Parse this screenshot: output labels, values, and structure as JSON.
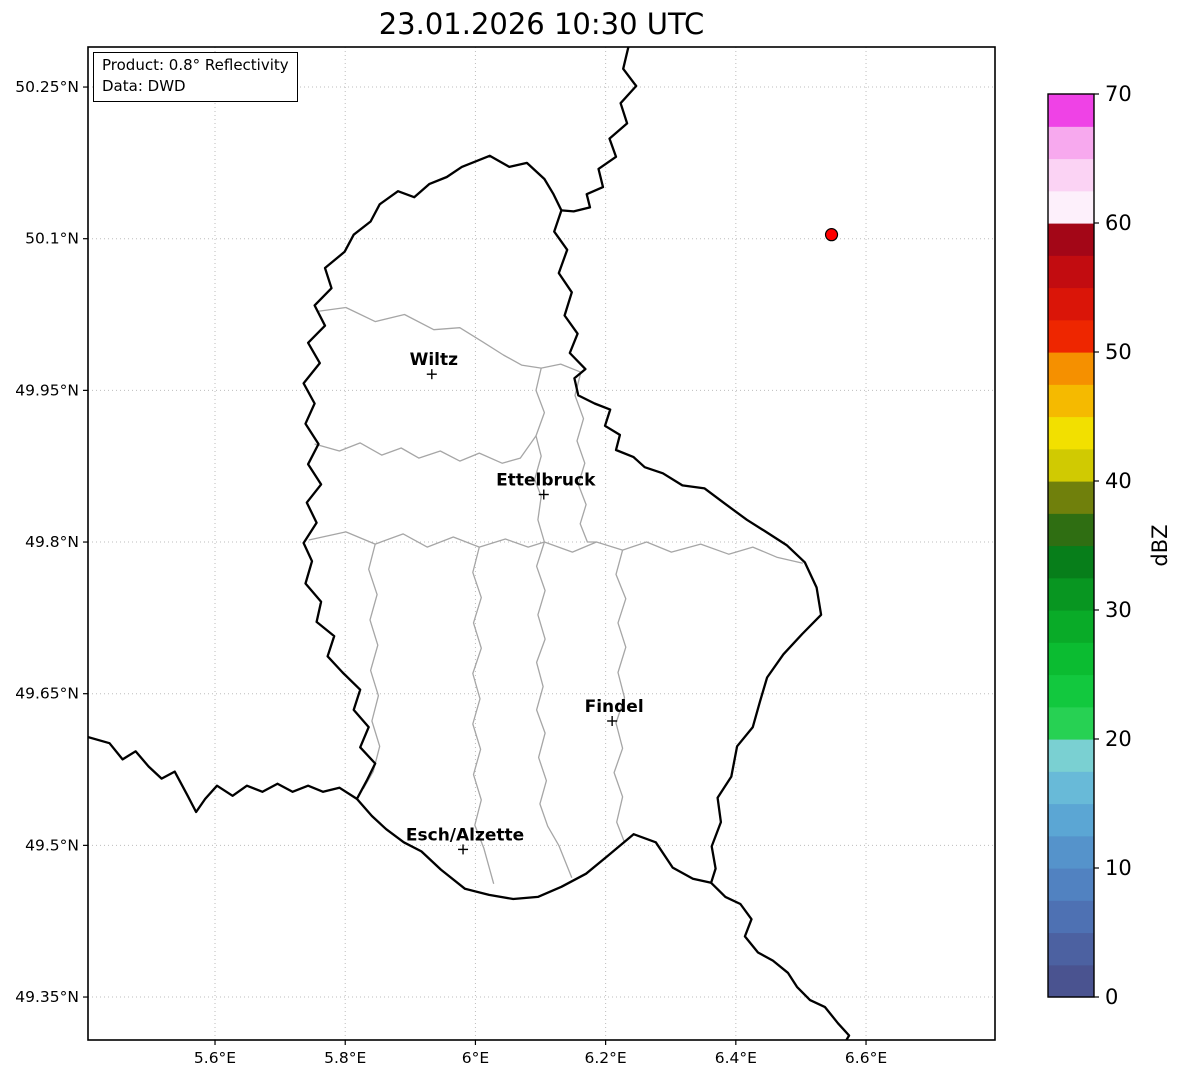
{
  "title": "23.01.2026 10:30 UTC",
  "info_box": {
    "line1": "Product: 0.8° Reflectivity",
    "line2": "Data: DWD"
  },
  "axes": {
    "x_ticks": [
      {
        "label": "5.6°E",
        "value": 5.6
      },
      {
        "label": "5.8°E",
        "value": 5.8
      },
      {
        "label": "6°E",
        "value": 6.0
      },
      {
        "label": "6.2°E",
        "value": 6.2
      },
      {
        "label": "6.4°E",
        "value": 6.4
      },
      {
        "label": "6.6°E",
        "value": 6.6
      }
    ],
    "y_ticks": [
      {
        "label": "50.25°N",
        "value": 50.25
      },
      {
        "label": "50.1°N",
        "value": 50.1
      },
      {
        "label": "49.95°N",
        "value": 49.95
      },
      {
        "label": "49.8°N",
        "value": 49.8
      },
      {
        "label": "49.65°N",
        "value": 49.65
      },
      {
        "label": "49.5°N",
        "value": 49.5
      },
      {
        "label": "49.35°N",
        "value": 49.35
      }
    ],
    "grid_color": "#bdbdbd"
  },
  "map": {
    "extent": {
      "lon_min": 5.4049,
      "lon_max": 6.7981,
      "lat_min": 49.3075,
      "lat_max": 50.2896
    },
    "country_border_color": "#000000",
    "district_border_color": "#a6a6a6",
    "cities": [
      {
        "name": "Wiltz",
        "lon": 5.933,
        "lat": 49.966
      },
      {
        "name": "Ettelbruck",
        "lon": 6.105,
        "lat": 49.847
      },
      {
        "name": "Findel",
        "lon": 6.21,
        "lat": 49.623
      },
      {
        "name": "Esch/Alzette",
        "lon": 5.981,
        "lat": 49.496
      }
    ],
    "radar_point": {
      "lon": 6.547,
      "lat": 50.104,
      "fill": "#ff0000",
      "edge": "#000000"
    },
    "borders": {
      "luxembourg": [
        [
          6.022,
          50.182
        ],
        [
          6.052,
          50.171
        ],
        [
          6.079,
          50.175
        ],
        [
          6.106,
          50.159
        ],
        [
          6.12,
          50.144
        ],
        [
          6.132,
          50.128
        ],
        [
          6.121,
          50.107
        ],
        [
          6.141,
          50.089
        ],
        [
          6.128,
          50.066
        ],
        [
          6.148,
          50.047
        ],
        [
          6.137,
          50.024
        ],
        [
          6.157,
          50.006
        ],
        [
          6.145,
          49.987
        ],
        [
          6.169,
          49.971
        ],
        [
          6.152,
          49.962
        ],
        [
          6.158,
          49.945
        ],
        [
          6.183,
          49.937
        ],
        [
          6.207,
          49.931
        ],
        [
          6.199,
          49.915
        ],
        [
          6.222,
          49.906
        ],
        [
          6.216,
          49.891
        ],
        [
          6.243,
          49.884
        ],
        [
          6.26,
          49.874
        ],
        [
          6.288,
          49.868
        ],
        [
          6.318,
          49.856
        ],
        [
          6.352,
          49.853
        ],
        [
          6.383,
          49.838
        ],
        [
          6.417,
          49.822
        ],
        [
          6.444,
          49.811
        ],
        [
          6.478,
          49.797
        ],
        [
          6.506,
          49.78
        ],
        [
          6.524,
          49.755
        ],
        [
          6.531,
          49.728
        ],
        [
          6.502,
          49.709
        ],
        [
          6.473,
          49.689
        ],
        [
          6.448,
          49.666
        ],
        [
          6.437,
          49.642
        ],
        [
          6.426,
          49.617
        ],
        [
          6.402,
          49.598
        ],
        [
          6.393,
          49.568
        ],
        [
          6.372,
          49.547
        ],
        [
          6.377,
          49.523
        ],
        [
          6.363,
          49.499
        ],
        [
          6.369,
          49.477
        ],
        [
          6.362,
          49.463
        ],
        [
          6.334,
          49.467
        ],
        [
          6.303,
          49.478
        ],
        [
          6.277,
          49.503
        ],
        [
          6.243,
          49.511
        ],
        [
          6.204,
          49.49
        ],
        [
          6.17,
          49.472
        ],
        [
          6.132,
          49.459
        ],
        [
          6.096,
          49.449
        ],
        [
          6.058,
          49.447
        ],
        [
          6.021,
          49.451
        ],
        [
          5.984,
          49.457
        ],
        [
          5.947,
          49.476
        ],
        [
          5.917,
          49.494
        ],
        [
          5.89,
          49.503
        ],
        [
          5.863,
          49.516
        ],
        [
          5.841,
          49.529
        ],
        [
          5.818,
          49.546
        ],
        [
          5.833,
          49.564
        ],
        [
          5.846,
          49.581
        ],
        [
          5.823,
          49.597
        ],
        [
          5.836,
          49.617
        ],
        [
          5.813,
          49.634
        ],
        [
          5.823,
          49.654
        ],
        [
          5.796,
          49.671
        ],
        [
          5.773,
          49.687
        ],
        [
          5.783,
          49.707
        ],
        [
          5.756,
          49.721
        ],
        [
          5.763,
          49.741
        ],
        [
          5.739,
          49.759
        ],
        [
          5.749,
          49.781
        ],
        [
          5.736,
          49.799
        ],
        [
          5.756,
          49.819
        ],
        [
          5.741,
          49.839
        ],
        [
          5.763,
          49.857
        ],
        [
          5.743,
          49.877
        ],
        [
          5.759,
          49.897
        ],
        [
          5.739,
          49.917
        ],
        [
          5.753,
          49.937
        ],
        [
          5.736,
          49.957
        ],
        [
          5.761,
          49.977
        ],
        [
          5.743,
          49.997
        ],
        [
          5.769,
          50.014
        ],
        [
          5.753,
          50.034
        ],
        [
          5.779,
          50.051
        ],
        [
          5.769,
          50.071
        ],
        [
          5.799,
          50.087
        ],
        [
          5.813,
          50.104
        ],
        [
          5.839,
          50.117
        ],
        [
          5.853,
          50.134
        ],
        [
          5.881,
          50.147
        ],
        [
          5.906,
          50.141
        ],
        [
          5.929,
          50.154
        ],
        [
          5.956,
          50.161
        ],
        [
          5.979,
          50.171
        ]
      ],
      "belgium_germany": [
        [
          6.237,
          50.295
        ],
        [
          6.227,
          50.268
        ],
        [
          6.247,
          50.251
        ],
        [
          6.223,
          50.234
        ],
        [
          6.233,
          50.214
        ],
        [
          6.206,
          50.199
        ],
        [
          6.216,
          50.181
        ],
        [
          6.189,
          50.169
        ],
        [
          6.196,
          50.151
        ],
        [
          6.171,
          50.144
        ],
        [
          6.176,
          50.131
        ],
        [
          6.151,
          50.127
        ],
        [
          6.132,
          50.128
        ]
      ],
      "france_belgium": [
        [
          5.4,
          49.608
        ],
        [
          5.438,
          49.601
        ],
        [
          5.458,
          49.585
        ],
        [
          5.478,
          49.593
        ],
        [
          5.498,
          49.578
        ],
        [
          5.518,
          49.566
        ],
        [
          5.538,
          49.573
        ],
        [
          5.558,
          49.549
        ],
        [
          5.571,
          49.533
        ],
        [
          5.585,
          49.546
        ],
        [
          5.603,
          49.559
        ],
        [
          5.627,
          49.549
        ],
        [
          5.649,
          49.559
        ],
        [
          5.673,
          49.553
        ],
        [
          5.696,
          49.561
        ],
        [
          5.719,
          49.553
        ],
        [
          5.743,
          49.559
        ],
        [
          5.766,
          49.553
        ],
        [
          5.791,
          49.557
        ],
        [
          5.818,
          49.546
        ]
      ],
      "france_germany": [
        [
          6.362,
          49.463
        ],
        [
          6.384,
          49.449
        ],
        [
          6.407,
          49.442
        ],
        [
          6.424,
          49.427
        ],
        [
          6.414,
          49.41
        ],
        [
          6.434,
          49.394
        ],
        [
          6.457,
          49.386
        ],
        [
          6.48,
          49.374
        ],
        [
          6.494,
          49.36
        ],
        [
          6.514,
          49.347
        ],
        [
          6.537,
          49.34
        ],
        [
          6.557,
          49.324
        ],
        [
          6.574,
          49.312
        ],
        [
          6.562,
          49.299
        ],
        [
          6.582,
          49.289
        ],
        [
          6.604,
          49.296
        ],
        [
          6.598,
          49.278
        ]
      ]
    },
    "districts": [
      [
        [
          5.756,
          50.028
        ],
        [
          5.801,
          50.032
        ],
        [
          5.846,
          50.018
        ],
        [
          5.891,
          50.025
        ],
        [
          5.936,
          50.01
        ],
        [
          5.976,
          50.012
        ],
        [
          6.011,
          49.998
        ],
        [
          6.043,
          49.985
        ],
        [
          6.071,
          49.975
        ],
        [
          6.101,
          49.972
        ],
        [
          6.131,
          49.976
        ],
        [
          6.162,
          49.968
        ]
      ],
      [
        [
          6.101,
          49.972
        ],
        [
          6.093,
          49.95
        ],
        [
          6.106,
          49.928
        ],
        [
          6.093,
          49.905
        ],
        [
          6.101,
          49.885
        ],
        [
          6.091,
          49.862
        ],
        [
          6.101,
          49.845
        ],
        [
          6.096,
          49.822
        ],
        [
          6.106,
          49.8
        ]
      ],
      [
        [
          5.744,
          49.802
        ],
        [
          5.801,
          49.81
        ],
        [
          5.846,
          49.798
        ],
        [
          5.889,
          49.808
        ],
        [
          5.926,
          49.795
        ],
        [
          5.966,
          49.805
        ],
        [
          6.006,
          49.795
        ],
        [
          6.046,
          49.803
        ],
        [
          6.081,
          49.795
        ],
        [
          6.106,
          49.8
        ],
        [
          6.149,
          49.79
        ],
        [
          6.186,
          49.8
        ],
        [
          6.226,
          49.792
        ],
        [
          6.263,
          49.8
        ],
        [
          6.301,
          49.79
        ],
        [
          6.346,
          49.798
        ],
        [
          6.389,
          49.788
        ],
        [
          6.426,
          49.795
        ],
        [
          6.463,
          49.785
        ],
        [
          6.503,
          49.779
        ]
      ],
      [
        [
          6.106,
          49.8
        ],
        [
          6.094,
          49.776
        ],
        [
          6.107,
          49.752
        ],
        [
          6.096,
          49.728
        ],
        [
          6.107,
          49.704
        ],
        [
          6.094,
          49.681
        ],
        [
          6.104,
          49.657
        ],
        [
          6.094,
          49.634
        ],
        [
          6.107,
          49.611
        ],
        [
          6.097,
          49.587
        ],
        [
          6.109,
          49.564
        ],
        [
          6.099,
          49.541
        ],
        [
          6.111,
          49.519
        ],
        [
          6.128,
          49.5
        ],
        [
          6.148,
          49.468
        ]
      ],
      [
        [
          6.226,
          49.792
        ],
        [
          6.216,
          49.768
        ],
        [
          6.231,
          49.744
        ],
        [
          6.219,
          49.72
        ],
        [
          6.231,
          49.696
        ],
        [
          6.219,
          49.671
        ],
        [
          6.229,
          49.646
        ],
        [
          6.216,
          49.621
        ],
        [
          6.226,
          49.596
        ],
        [
          6.213,
          49.572
        ],
        [
          6.226,
          49.548
        ],
        [
          6.217,
          49.523
        ],
        [
          6.229,
          49.503
        ]
      ],
      [
        [
          6.162,
          49.968
        ],
        [
          6.153,
          49.945
        ],
        [
          6.166,
          49.922
        ],
        [
          6.156,
          49.9
        ],
        [
          6.168,
          49.878
        ],
        [
          6.158,
          49.857
        ],
        [
          6.17,
          49.837
        ],
        [
          6.161,
          49.818
        ],
        [
          6.172,
          49.8
        ],
        [
          6.186,
          49.8
        ]
      ],
      [
        [
          5.753,
          49.897
        ],
        [
          5.791,
          49.89
        ],
        [
          5.823,
          49.898
        ],
        [
          5.856,
          49.886
        ],
        [
          5.886,
          49.893
        ],
        [
          5.913,
          49.883
        ],
        [
          5.946,
          49.89
        ],
        [
          5.976,
          49.88
        ],
        [
          6.006,
          49.888
        ],
        [
          6.041,
          49.878
        ],
        [
          6.069,
          49.883
        ],
        [
          6.093,
          49.905
        ]
      ],
      [
        [
          6.006,
          49.795
        ],
        [
          5.996,
          49.77
        ],
        [
          6.009,
          49.745
        ],
        [
          5.997,
          49.72
        ],
        [
          6.009,
          49.695
        ],
        [
          5.996,
          49.67
        ],
        [
          6.007,
          49.645
        ],
        [
          5.996,
          49.62
        ],
        [
          6.008,
          49.595
        ],
        [
          5.997,
          49.57
        ],
        [
          6.009,
          49.545
        ],
        [
          5.999,
          49.52
        ],
        [
          6.013,
          49.497
        ],
        [
          6.028,
          49.462
        ]
      ],
      [
        [
          5.846,
          49.798
        ],
        [
          5.836,
          49.773
        ],
        [
          5.849,
          49.748
        ],
        [
          5.838,
          49.723
        ],
        [
          5.85,
          49.698
        ],
        [
          5.839,
          49.673
        ],
        [
          5.851,
          49.648
        ],
        [
          5.841,
          49.623
        ],
        [
          5.853,
          49.598
        ],
        [
          5.843,
          49.573
        ],
        [
          5.828,
          49.556
        ]
      ]
    ]
  },
  "colorbar": {
    "label": "dBZ",
    "vmin": 0,
    "vmax": 70,
    "step": 2.5,
    "ticks": [
      {
        "label": "0",
        "value": 0
      },
      {
        "label": "10",
        "value": 10
      },
      {
        "label": "20",
        "value": 20
      },
      {
        "label": "30",
        "value": 30
      },
      {
        "label": "40",
        "value": 40
      },
      {
        "label": "50",
        "value": 50
      },
      {
        "label": "60",
        "value": 60
      },
      {
        "label": "70",
        "value": 70
      }
    ],
    "colors_bottom_to_top": [
      "#4a5390",
      "#4c61a1",
      "#4e71b3",
      "#5182c1",
      "#5593cb",
      "#5ba6d4",
      "#68bad8",
      "#7ad0d2",
      "#27d153",
      "#12c83e",
      "#0bbc31",
      "#09ab28",
      "#089621",
      "#077e1a",
      "#2f6e12",
      "#70800c",
      "#d0ca02",
      "#f2e000",
      "#f5ba00",
      "#f59000",
      "#ee2600",
      "#da1508",
      "#c20c10",
      "#a30617",
      "#fdf0fb",
      "#fbd3f4",
      "#f7a9ee",
      "#ef42e6"
    ]
  }
}
